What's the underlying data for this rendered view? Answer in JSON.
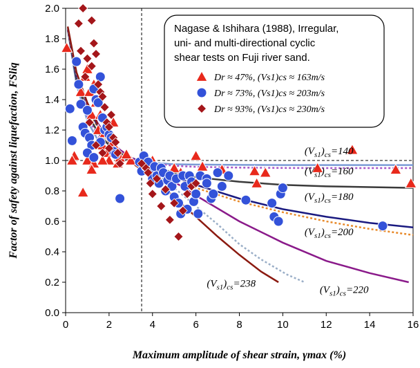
{
  "chart_data": {
    "type": "scatter",
    "title": "",
    "xlabel": "Maximum amplitude of shear strain, γmax (%)",
    "ylabel": "Factor of safety against liquefaction, FSliq",
    "xlim": [
      0,
      16
    ],
    "ylim": [
      0,
      2.0
    ],
    "x_ticks": [
      "0",
      "2",
      "4",
      "6",
      "8",
      "10",
      "12",
      "14",
      "16"
    ],
    "y_ticks": [
      "0.0",
      "0.2",
      "0.4",
      "0.6",
      "0.8",
      "1.0",
      "1.2",
      "1.4",
      "1.6",
      "1.8",
      "2.0"
    ],
    "grid": false,
    "reference_lines": {
      "vertical_x": 3.5,
      "horizontal_y": 1.0
    },
    "legend": {
      "placement": "top-right",
      "title_lines": [
        "Nagase & Ishihara (1988), Irregular,",
        "uni- and multi-directional cyclic",
        "shear tests on Fuji river sand."
      ],
      "entries": [
        {
          "marker": "triangle",
          "color": "#e8291c",
          "label": "Dr ≈ 47%, (Vs1)cs ≈ 163m/s"
        },
        {
          "marker": "circle",
          "color": "#3352d9",
          "label": "Dr ≈ 73%, (Vs1)cs ≈ 203m/s"
        },
        {
          "marker": "diamond",
          "color": "#a4161a",
          "label": "Dr ≈ 93%, (Vs1)cs ≈ 230m/s"
        }
      ]
    },
    "curves": [
      {
        "label": "(Vs1)cs=140",
        "color": "#7b9bd6",
        "dash": "solid",
        "asymptote": 0.97,
        "k": 1.6,
        "x": [
          0.1,
          0.5,
          1,
          1.5,
          2,
          2.5,
          3,
          3.5,
          4,
          5,
          6,
          8,
          10,
          12,
          14,
          16
        ],
        "y": [
          1.86,
          1.5,
          1.26,
          1.13,
          1.06,
          1.02,
          1.0,
          0.99,
          0.985,
          0.975,
          0.973,
          0.971,
          0.97,
          0.97,
          0.97,
          0.97
        ]
      },
      {
        "label": "(Vs1)cs=160",
        "color": "#a855c7",
        "dash": "dotted",
        "asymptote": 0.95,
        "k": 1.5,
        "x": [
          0.1,
          0.5,
          1,
          1.5,
          2,
          2.5,
          3,
          3.5,
          4,
          5,
          6,
          8,
          10,
          12,
          14,
          16
        ],
        "y": [
          1.86,
          1.52,
          1.29,
          1.16,
          1.08,
          1.04,
          1.01,
          0.99,
          0.98,
          0.965,
          0.958,
          0.953,
          0.951,
          0.95,
          0.95,
          0.95
        ]
      },
      {
        "label": "(Vs1)cs=180",
        "color": "#3a3a3a",
        "dash": "solid",
        "asymptote": 0.8,
        "k": 1.3,
        "x": [
          0.1,
          0.5,
          1,
          1.5,
          2,
          2.5,
          3,
          3.5,
          4,
          5,
          6,
          8,
          10,
          12,
          14,
          16
        ],
        "y": [
          1.86,
          1.53,
          1.31,
          1.18,
          1.1,
          1.05,
          1.01,
          0.98,
          0.96,
          0.92,
          0.89,
          0.86,
          0.84,
          0.83,
          0.825,
          0.82
        ]
      },
      {
        "label": "(Vs1)cs=200",
        "color": "#e88a2a",
        "dash": "dotted",
        "asymptote": 0.42,
        "k": 0.9,
        "x": [
          0.1,
          0.5,
          1,
          1.5,
          2,
          2.5,
          3,
          3.5,
          4,
          5,
          6,
          8,
          10,
          12,
          14,
          16
        ],
        "y": [
          1.87,
          1.56,
          1.35,
          1.21,
          1.12,
          1.06,
          1.02,
          0.99,
          0.96,
          0.88,
          0.82,
          0.73,
          0.66,
          0.6,
          0.55,
          0.51
        ]
      },
      {
        "label": "(Vs1)cs=200",
        "color": "#1a1a80",
        "dash": "solid",
        "asymptote": 0.5,
        "k": 0.95,
        "x": [
          0.1,
          0.5,
          1,
          1.5,
          2,
          2.5,
          3,
          3.5,
          4,
          5,
          6,
          8,
          10,
          12,
          14,
          16
        ],
        "y": [
          1.87,
          1.56,
          1.36,
          1.22,
          1.13,
          1.07,
          1.02,
          0.99,
          0.96,
          0.89,
          0.84,
          0.75,
          0.68,
          0.63,
          0.59,
          0.56
        ]
      },
      {
        "label": "(Vs1)cs=220",
        "color": "#8a1a8a",
        "dash": "solid",
        "asymptote": 0.0,
        "k": 0.8,
        "x": [
          0.1,
          0.5,
          1,
          1.5,
          2,
          2.5,
          3,
          3.5,
          4,
          5,
          6,
          8,
          10,
          12,
          14,
          15.8
        ],
        "y": [
          1.87,
          1.57,
          1.37,
          1.24,
          1.14,
          1.07,
          1.02,
          0.98,
          0.95,
          0.86,
          0.77,
          0.6,
          0.46,
          0.34,
          0.26,
          0.2
        ]
      },
      {
        "label": "(Vs1)cs=238",
        "color": "#9aaec7",
        "dash": "dotted",
        "asymptote": 0.0,
        "k": 0.7,
        "x": [
          0.1,
          0.5,
          1,
          1.5,
          2,
          2.5,
          3,
          3.5,
          4,
          5,
          6,
          7,
          8,
          9,
          10.2,
          11
        ],
        "y": [
          1.87,
          1.57,
          1.37,
          1.23,
          1.13,
          1.06,
          1.01,
          0.97,
          0.93,
          0.82,
          0.7,
          0.58,
          0.45,
          0.35,
          0.25,
          0.2
        ]
      },
      {
        "label": "(Vs1)cs=238",
        "color": "#8b1a10",
        "dash": "solid",
        "asymptote": 0.0,
        "k": 0.6,
        "x": [
          0.1,
          0.5,
          1,
          1.5,
          2,
          2.5,
          3,
          3.5,
          4,
          5,
          6,
          7,
          8,
          9,
          9.8
        ],
        "y": [
          1.88,
          1.58,
          1.38,
          1.23,
          1.12,
          1.04,
          0.99,
          0.94,
          0.89,
          0.76,
          0.63,
          0.5,
          0.38,
          0.27,
          0.2
        ]
      }
    ],
    "curve_labels": [
      {
        "text": "(Vs1)cs=140",
        "x": 11.0,
        "y": 1.04
      },
      {
        "text": "(Vs1)cs=160",
        "x": 11.0,
        "y": 0.91
      },
      {
        "text": "(Vs1)cs=180",
        "x": 11.0,
        "y": 0.74
      },
      {
        "text": "(Vs1)cs=200",
        "x": 11.0,
        "y": 0.51
      },
      {
        "text": "(Vs1)cs=220",
        "x": 11.7,
        "y": 0.13
      },
      {
        "text": "(Vs1)cs=238",
        "x": 6.5,
        "y": 0.17
      }
    ],
    "series": [
      {
        "name": "Dr ≈ 47%, (Vs1)cs ≈ 163m/s",
        "marker": "triangle",
        "color": "#e8291c",
        "points": [
          [
            0.05,
            1.74
          ],
          [
            0.4,
            1.03
          ],
          [
            0.3,
            1.0
          ],
          [
            0.8,
            0.79
          ],
          [
            0.7,
            1.45
          ],
          [
            0.9,
            1.55
          ],
          [
            1.0,
            1.6
          ],
          [
            1.1,
            1.45
          ],
          [
            1.2,
            1.3
          ],
          [
            1.3,
            1.5
          ],
          [
            1.4,
            1.38
          ],
          [
            1.5,
            1.2
          ],
          [
            1.6,
            1.3
          ],
          [
            1.7,
            1.1
          ],
          [
            1.8,
            1.18
          ],
          [
            1.9,
            1.05
          ],
          [
            2.0,
            1.0
          ],
          [
            2.1,
            1.1
          ],
          [
            2.2,
            1.25
          ],
          [
            2.3,
            1.08
          ],
          [
            2.4,
            0.98
          ],
          [
            1.0,
            1.0
          ],
          [
            1.3,
            0.98
          ],
          [
            1.7,
            1.0
          ],
          [
            1.2,
            0.94
          ],
          [
            2.5,
            1.02
          ],
          [
            3.0,
            1.0
          ],
          [
            3.6,
            0.98
          ],
          [
            4.2,
            0.94
          ],
          [
            5.3,
            0.92
          ],
          [
            5.0,
            0.95
          ],
          [
            6.0,
            1.03
          ],
          [
            6.3,
            0.96
          ],
          [
            7.2,
            0.94
          ],
          [
            8.7,
            0.93
          ],
          [
            9.2,
            0.92
          ],
          [
            8.8,
            0.85
          ],
          [
            11.6,
            0.95
          ],
          [
            13.2,
            1.07
          ],
          [
            15.2,
            0.94
          ],
          [
            15.9,
            0.85
          ],
          [
            4.0,
            1.0
          ],
          [
            2.8,
            1.04
          ]
        ]
      },
      {
        "name": "Dr ≈ 73%, (Vs1)cs ≈ 203m/s",
        "marker": "circle",
        "color": "#3352d9",
        "points": [
          [
            0.2,
            1.34
          ],
          [
            0.3,
            1.13
          ],
          [
            0.5,
            1.65
          ],
          [
            0.6,
            1.5
          ],
          [
            0.7,
            1.37
          ],
          [
            0.8,
            1.22
          ],
          [
            0.9,
            1.18
          ],
          [
            1.0,
            1.33
          ],
          [
            1.1,
            1.15
          ],
          [
            1.2,
            1.1
          ],
          [
            1.3,
            1.47
          ],
          [
            1.4,
            1.4
          ],
          [
            1.5,
            1.38
          ],
          [
            1.6,
            1.55
          ],
          [
            1.7,
            1.28
          ],
          [
            1.8,
            1.2
          ],
          [
            1.9,
            1.22
          ],
          [
            2.0,
            1.17
          ],
          [
            2.1,
            1.15
          ],
          [
            2.2,
            1.06
          ],
          [
            2.3,
            1.04
          ],
          [
            1.0,
            1.05
          ],
          [
            1.3,
            1.02
          ],
          [
            1.6,
            1.12
          ],
          [
            2.5,
            0.75
          ],
          [
            3.4,
            0.99
          ],
          [
            3.5,
            0.93
          ],
          [
            3.6,
            1.03
          ],
          [
            3.7,
            0.96
          ],
          [
            3.8,
            0.99
          ],
          [
            3.9,
            0.93
          ],
          [
            4.0,
            0.88
          ],
          [
            4.1,
            0.96
          ],
          [
            4.2,
            0.9
          ],
          [
            4.3,
            0.85
          ],
          [
            4.4,
            0.95
          ],
          [
            4.5,
            0.92
          ],
          [
            4.6,
            0.8
          ],
          [
            4.7,
            0.87
          ],
          [
            4.8,
            0.9
          ],
          [
            4.9,
            0.83
          ],
          [
            5.0,
            0.76
          ],
          [
            5.1,
            0.88
          ],
          [
            5.2,
            0.72
          ],
          [
            5.3,
            0.65
          ],
          [
            5.4,
            0.9
          ],
          [
            5.5,
            0.83
          ],
          [
            5.6,
            0.68
          ],
          [
            5.7,
            0.9
          ],
          [
            5.8,
            0.86
          ],
          [
            5.9,
            0.73
          ],
          [
            6.0,
            0.78
          ],
          [
            6.1,
            0.65
          ],
          [
            6.2,
            0.9
          ],
          [
            6.5,
            0.88
          ],
          [
            6.7,
            0.75
          ],
          [
            7.0,
            0.92
          ],
          [
            7.2,
            0.83
          ],
          [
            7.5,
            0.9
          ],
          [
            8.3,
            0.74
          ],
          [
            9.5,
            0.72
          ],
          [
            9.6,
            0.63
          ],
          [
            9.8,
            0.6
          ],
          [
            9.9,
            0.78
          ],
          [
            10.0,
            0.82
          ],
          [
            14.6,
            0.57
          ],
          [
            6.5,
            0.85
          ],
          [
            6.8,
            0.78
          ]
        ]
      },
      {
        "name": "Dr ≈ 93%, (Vs1)cs ≈ 230m/s",
        "marker": "diamond",
        "color": "#a4161a",
        "points": [
          [
            0.6,
            1.9
          ],
          [
            0.8,
            2.0
          ],
          [
            1.2,
            1.92
          ],
          [
            0.7,
            1.72
          ],
          [
            1.0,
            1.67
          ],
          [
            1.2,
            1.62
          ],
          [
            1.3,
            1.77
          ],
          [
            1.4,
            1.7
          ],
          [
            0.9,
            1.55
          ],
          [
            1.5,
            1.5
          ],
          [
            1.6,
            1.45
          ],
          [
            1.7,
            1.42
          ],
          [
            1.8,
            1.35
          ],
          [
            1.9,
            1.25
          ],
          [
            2.0,
            1.22
          ],
          [
            2.1,
            1.3
          ],
          [
            2.2,
            1.15
          ],
          [
            2.3,
            1.12
          ],
          [
            2.4,
            1.05
          ],
          [
            2.5,
            0.98
          ],
          [
            1.1,
            1.25
          ],
          [
            1.4,
            1.1
          ],
          [
            1.7,
            1.05
          ],
          [
            2.0,
            1.08
          ],
          [
            3.5,
            0.98
          ],
          [
            3.7,
            0.95
          ],
          [
            3.8,
            0.92
          ],
          [
            3.9,
            0.85
          ],
          [
            4.0,
            0.78
          ],
          [
            4.2,
            0.88
          ],
          [
            4.4,
            0.7
          ],
          [
            4.6,
            0.81
          ],
          [
            4.8,
            0.61
          ],
          [
            5.0,
            0.72
          ],
          [
            5.2,
            0.5
          ],
          [
            5.4,
            0.67
          ],
          [
            5.6,
            0.78
          ],
          [
            5.8,
            0.83
          ],
          [
            6.0,
            0.85
          ]
        ]
      }
    ]
  }
}
